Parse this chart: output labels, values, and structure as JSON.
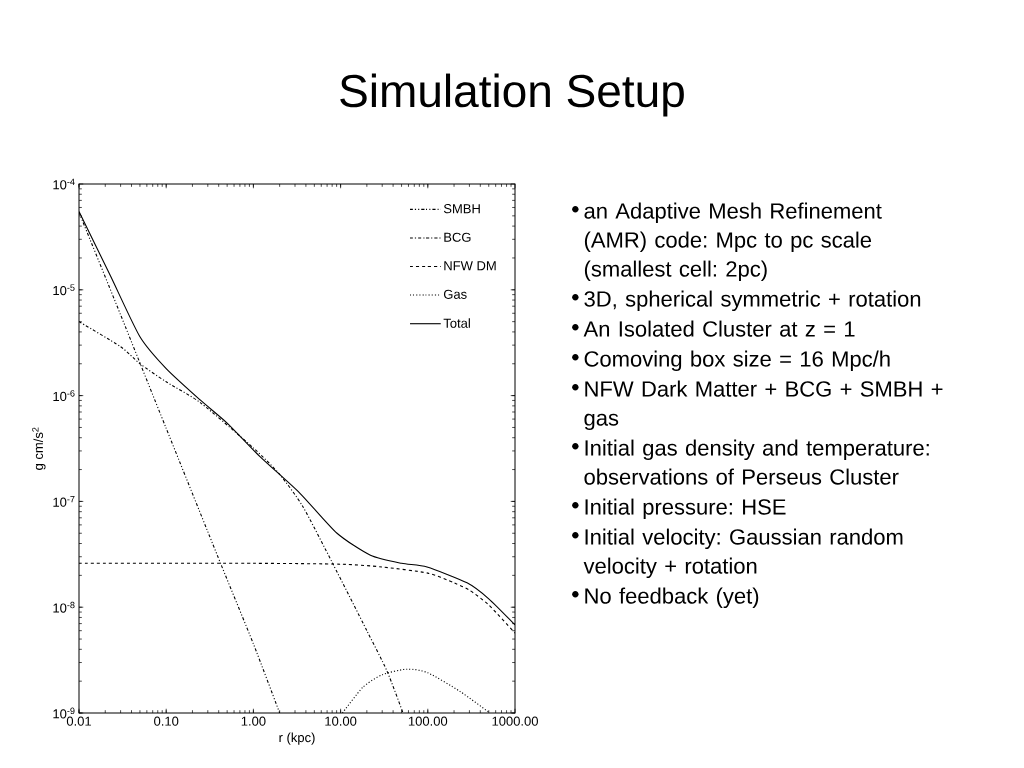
{
  "chart_data": {
    "type": "line",
    "title": "Simulation Setup",
    "xlabel": "r (kpc)",
    "ylabel": "g cm/s$^{2}$",
    "log": "xy",
    "xlim": [
      0.01,
      1000
    ],
    "ylim": [
      1e-09,
      0.0001
    ],
    "xticks": [
      {
        "value": 0.01,
        "label": "0.01"
      },
      {
        "value": 0.1,
        "label": "0.10"
      },
      {
        "value": 1,
        "label": "1.00"
      },
      {
        "value": 10,
        "label": "10.00"
      },
      {
        "value": 100,
        "label": "100.00"
      },
      {
        "value": 1000,
        "label": "1000.00"
      }
    ],
    "yticks": [
      {
        "value": 1e-09,
        "label": "10$^{-9}$"
      },
      {
        "value": 1e-08,
        "label": "10$^{-8}$"
      },
      {
        "value": 1e-07,
        "label": "10$^{-7}$"
      },
      {
        "value": 1e-06,
        "label": "10$^{-6}$"
      },
      {
        "value": 1e-05,
        "label": "10$^{-5}$"
      },
      {
        "value": 0.0001,
        "label": "10$^{-4}$"
      }
    ],
    "grid": false,
    "legend": "top right",
    "marker": "none",
    "series": [
      {
        "name": "SMBH",
        "color": "#000000",
        "line_style": "dashdotdotted",
        "x": [
          0.01,
          0.03,
          0.1,
          0.42,
          1,
          2.0
        ],
        "values": [
          5.4e-05,
          5.8e-06,
          4.9e-07,
          2.6e-08,
          4.5e-09,
          1e-09
        ]
      },
      {
        "name": "BCG",
        "color": "#000000",
        "line_style": "dashdotted",
        "x": [
          0.01,
          0.03,
          0.05,
          0.1,
          0.25,
          1,
          2,
          3.7,
          8.1,
          20,
          34,
          52
        ],
        "values": [
          5e-06,
          2.9e-06,
          2e-06,
          1.35e-06,
          8.5e-07,
          3.2e-07,
          1.8e-07,
          8.9e-08,
          2.6e-08,
          6e-09,
          2.5e-09,
          1e-09
        ]
      },
      {
        "name": "NFW  DM",
        "color": "#000000",
        "line_style": "dashed",
        "x": [
          0.01,
          1,
          10,
          30,
          100,
          200,
          300,
          500,
          1000
        ],
        "values": [
          2.6e-08,
          2.6e-08,
          2.55e-08,
          2.4e-08,
          2.1e-08,
          1.7e-08,
          1.45e-08,
          1.05e-08,
          5.7e-09
        ]
      },
      {
        "name": "Gas",
        "color": "#000000",
        "line_style": "dotted",
        "x": [
          10.5,
          18,
          30,
          58,
          100,
          234,
          515
        ],
        "values": [
          1e-09,
          1.75e-09,
          2.3e-09,
          2.6e-09,
          2.4e-09,
          1.6e-09,
          1e-09
        ]
      },
      {
        "name": "Total",
        "color": "#000000",
        "line_style": "solid",
        "x": [
          0.01,
          0.023,
          0.05,
          0.1,
          0.245,
          0.5,
          1.19,
          3.4,
          9.1,
          22,
          50,
          98,
          282,
          500,
          1000
        ],
        "values": [
          5.5e-05,
          1.35e-05,
          3.6e-06,
          1.8e-06,
          9.1e-07,
          5.5e-07,
          2.65e-07,
          1.2e-07,
          5e-08,
          3.1e-08,
          2.6e-08,
          2.4e-08,
          1.7e-08,
          1.2e-08,
          6.8e-09
        ]
      }
    ],
    "annotations": [
      "an Adaptive Mesh Refinement (AMR) code: Mpc to pc scale (smallest cell: 2pc)",
      "3D, spherical symmetric + rotation",
      "An Isolated Cluster at z = 1",
      "Comoving box size = 16 Mpc/h",
      "NFW Dark Matter + BCG + SMBH + gas",
      "Initial gas density and temperature: observations of Perseus Cluster",
      "Initial pressure: HSE",
      "Initial velocity: Gaussian random velocity + rotation",
      "No feedback (yet)"
    ]
  }
}
